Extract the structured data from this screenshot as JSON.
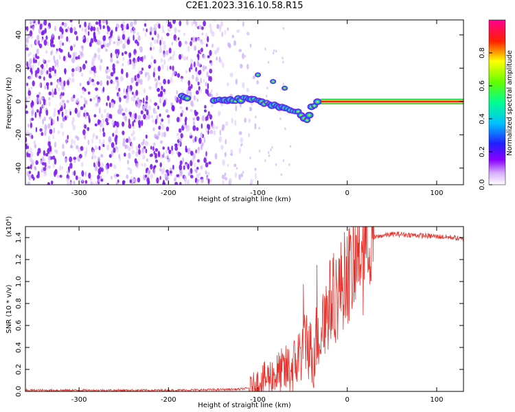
{
  "title": "C2E1.2023.316.10.58.R15",
  "chart_data": [
    {
      "type": "heatmap",
      "title": "C2E1.2023.316.10.58.R15",
      "xlabel": "Height of straight line (km)",
      "ylabel": "Frequency (Hz)",
      "xlim": [
        -360,
        130
      ],
      "ylim": [
        -50,
        49
      ],
      "xticks": [
        "-300",
        "-200",
        "-100",
        "0",
        "100"
      ],
      "yticks": [
        "-40",
        "-20",
        "0",
        "20",
        "40"
      ],
      "colorbar": {
        "label": "Normalized spectral amplitude",
        "range": [
          0.0,
          1.0
        ],
        "ticks": [
          "0.0",
          "0.2",
          "0.4",
          "0.6",
          "0.8"
        ],
        "colormap": "white-purple-blue-cyan-green-yellow-red-magenta"
      },
      "features": {
        "noise_region_x": [
          -360,
          -110
        ],
        "signal_trace": [
          {
            "x": -185,
            "y": 3
          },
          {
            "x": -140,
            "y": 0
          },
          {
            "x": -110,
            "y": 2
          },
          {
            "x": -90,
            "y": -1
          },
          {
            "x": -70,
            "y": -4
          },
          {
            "x": -55,
            "y": -7
          },
          {
            "x": -45,
            "y": -12
          },
          {
            "x": -40,
            "y": -3
          },
          {
            "x": -30,
            "y": 0
          },
          {
            "x": 0,
            "y": 0
          },
          {
            "x": 130,
            "y": 0
          }
        ],
        "side_blobs": [
          {
            "x": -100,
            "y": 16
          },
          {
            "x": -83,
            "y": 12
          },
          {
            "x": -70,
            "y": 8
          }
        ]
      },
      "grid": false,
      "legend": "none"
    },
    {
      "type": "line",
      "xlabel": "Height of straight line (km)",
      "ylabel": "SNR (10 * v/v)",
      "yscale_note": "(x10⁴)",
      "xlim": [
        -360,
        130
      ],
      "ylim": [
        0,
        1.5
      ],
      "xticks": [
        "-300",
        "-200",
        "-100",
        "0",
        "100"
      ],
      "yticks": [
        "0.0",
        "0.2",
        "0.4",
        "0.6",
        "0.8",
        "1.0",
        "1.2",
        "1.4"
      ],
      "color": "#e8302a",
      "series": [
        {
          "x": [
            -360,
            -300,
            -200,
            -150,
            -120,
            -110,
            -100,
            -95,
            -90,
            -80,
            -70,
            -60,
            -50,
            -45,
            -40,
            -35,
            -30,
            -25,
            -20,
            -15,
            -10,
            -5,
            0,
            5,
            10,
            15,
            20,
            25,
            30,
            40,
            50,
            60,
            80,
            100,
            120,
            130
          ],
          "y": [
            0.01,
            0.01,
            0.01,
            0.015,
            0.02,
            0.03,
            0.08,
            0.1,
            0.12,
            0.15,
            0.18,
            0.22,
            0.4,
            0.5,
            0.3,
            0.5,
            0.55,
            0.65,
            0.8,
            0.85,
            0.9,
            1.0,
            1.05,
            1.1,
            1.2,
            1.3,
            1.34,
            1.38,
            1.4,
            1.42,
            1.43,
            1.43,
            1.42,
            1.41,
            1.4,
            1.38
          ]
        }
      ],
      "grid": false,
      "legend": "none"
    }
  ]
}
